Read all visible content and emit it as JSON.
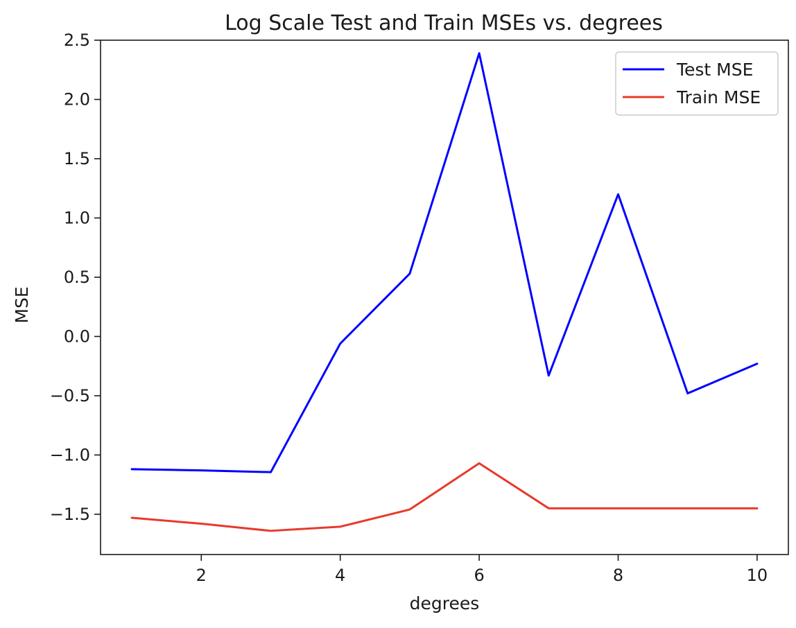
{
  "chart_data": {
    "type": "line",
    "title": "Log Scale Test and Train MSEs vs. degrees",
    "xlabel": "degrees",
    "ylabel": "MSE",
    "x": [
      1,
      2,
      3,
      4,
      5,
      6,
      7,
      8,
      9,
      10
    ],
    "xlim": [
      0.55,
      10.45
    ],
    "ylim": [
      -1.84,
      2.5
    ],
    "x_ticks": [
      2,
      4,
      6,
      8,
      10
    ],
    "y_ticks": [
      2.5,
      2.0,
      1.5,
      1.0,
      0.5,
      0.0,
      -0.5,
      -1.0,
      -1.5
    ],
    "x_tick_labels": [
      "2",
      "4",
      "6",
      "8",
      "10"
    ],
    "y_tick_labels": [
      "2.5",
      "2.0",
      "1.5",
      "1.0",
      "0.5",
      "0.0",
      "−0.5",
      "−1.0",
      "−1.5"
    ],
    "grid": false,
    "legend_position": "top-right",
    "series": [
      {
        "name": "Test MSE",
        "color": "#0000ff",
        "values": [
          -1.12,
          -1.13,
          -1.145,
          -0.06,
          0.53,
          2.39,
          -0.33,
          1.2,
          -0.48,
          -0.23
        ]
      },
      {
        "name": "Train MSE",
        "color": "#e8392a",
        "values": [
          -1.53,
          -1.58,
          -1.64,
          -1.605,
          -1.46,
          -1.07,
          -1.45,
          -1.45,
          -1.45,
          -1.45
        ]
      }
    ]
  }
}
